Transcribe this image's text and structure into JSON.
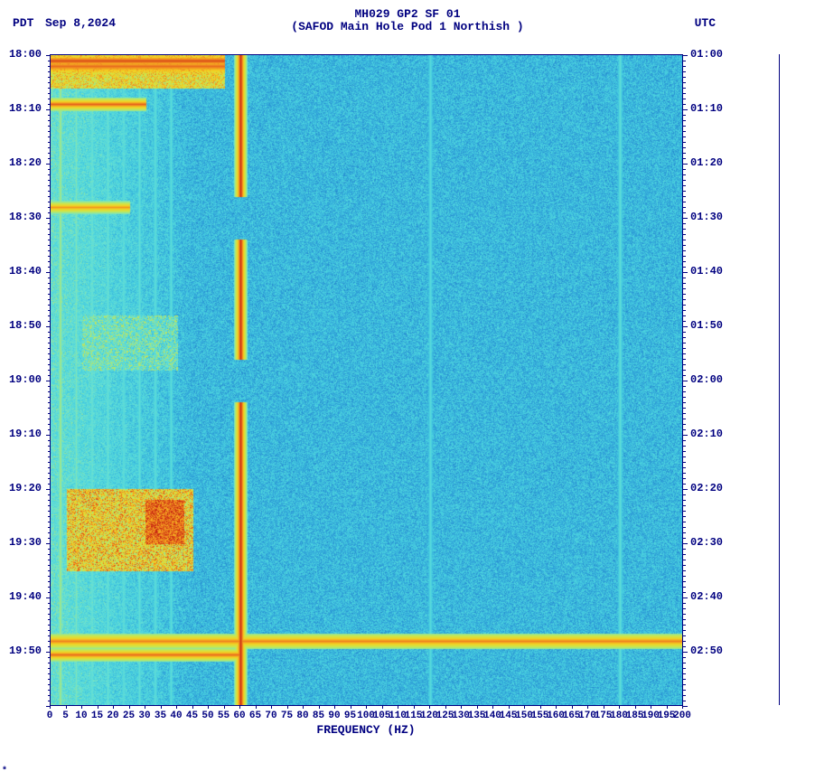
{
  "header": {
    "tz_left": "PDT",
    "date": "Sep 8,2024",
    "title_line1": "MH029 GP2 SF 01",
    "title_line2": "(SAFOD Main Hole Pod 1 Northish )",
    "tz_right": "UTC"
  },
  "chart": {
    "type": "heatmap",
    "xlabel": "FREQUENCY (HZ)",
    "xlim": [
      0,
      200
    ],
    "xtick_step": 5,
    "xtick_labels": [
      "0",
      "5",
      "10",
      "15",
      "20",
      "25",
      "30",
      "35",
      "40",
      "45",
      "50",
      "55",
      "60",
      "65",
      "70",
      "75",
      "80",
      "85",
      "90",
      "95",
      "100",
      "105",
      "110",
      "115",
      "120",
      "125",
      "130",
      "135",
      "140",
      "145",
      "150",
      "155",
      "160",
      "165",
      "170",
      "175",
      "180",
      "185",
      "190",
      "195",
      "200"
    ],
    "y_left_labels": [
      "18:00",
      "18:10",
      "18:20",
      "18:30",
      "18:40",
      "18:50",
      "19:00",
      "19:10",
      "19:20",
      "19:30",
      "19:40",
      "19:50"
    ],
    "y_right_labels": [
      "01:00",
      "01:10",
      "01:20",
      "01:30",
      "01:40",
      "01:50",
      "02:00",
      "02:10",
      "02:20",
      "02:30",
      "02:40",
      "02:50"
    ],
    "y_num_major": 12,
    "y_total_minutes": 120,
    "colormap": {
      "stops": [
        [
          0.0,
          "#0a3a8c"
        ],
        [
          0.15,
          "#1a5fb4"
        ],
        [
          0.3,
          "#2d9cd8"
        ],
        [
          0.45,
          "#48d1e0"
        ],
        [
          0.6,
          "#6de3d0"
        ],
        [
          0.72,
          "#c8e850"
        ],
        [
          0.82,
          "#f5d020"
        ],
        [
          0.9,
          "#f08020"
        ],
        [
          1.0,
          "#c01810"
        ]
      ]
    },
    "background_base_range": [
      0.28,
      0.48
    ],
    "low_freq_boost": {
      "freq_cutoff": 45,
      "boost_max": 0.18
    },
    "vertical_lines": [
      {
        "freq": 60,
        "width": 2.2,
        "intensity": 0.98
      },
      {
        "freq": 120,
        "width": 0.9,
        "intensity": 0.52
      },
      {
        "freq": 180,
        "width": 0.9,
        "intensity": 0.55
      },
      {
        "freq": 3,
        "width": 1.0,
        "intensity": 0.7
      },
      {
        "freq": 8,
        "width": 0.8,
        "intensity": 0.62
      },
      {
        "freq": 13,
        "width": 0.8,
        "intensity": 0.6
      },
      {
        "freq": 18,
        "width": 0.8,
        "intensity": 0.58
      },
      {
        "freq": 23,
        "width": 0.8,
        "intensity": 0.56
      },
      {
        "freq": 28,
        "width": 0.8,
        "intensity": 0.56
      },
      {
        "freq": 33,
        "width": 0.8,
        "intensity": 0.56
      },
      {
        "freq": 38,
        "width": 0.8,
        "intensity": 0.54
      }
    ],
    "horizontal_events": [
      {
        "time_min": 1.0,
        "freq_start": 0,
        "freq_end": 55,
        "thickness": 1.5,
        "intensity": 0.95
      },
      {
        "time_min": 2.0,
        "freq_start": 0,
        "freq_end": 55,
        "thickness": 2.0,
        "intensity": 0.92
      },
      {
        "time_min": 9.0,
        "freq_start": 0,
        "freq_end": 30,
        "thickness": 1.2,
        "intensity": 0.93
      },
      {
        "time_min": 28.0,
        "freq_start": 0,
        "freq_end": 25,
        "thickness": 1.2,
        "intensity": 0.88
      },
      {
        "time_min": 108.0,
        "freq_start": 0,
        "freq_end": 200,
        "thickness": 1.5,
        "intensity": 0.9
      },
      {
        "time_min": 110.5,
        "freq_start": 0,
        "freq_end": 60,
        "thickness": 1.2,
        "intensity": 0.92
      }
    ],
    "hot_blocks": [
      {
        "time_start": 80,
        "time_end": 95,
        "freq_start": 5,
        "freq_end": 45,
        "intensity": 0.8,
        "noise": 0.15
      },
      {
        "time_start": 82,
        "time_end": 90,
        "freq_start": 30,
        "freq_end": 42,
        "intensity": 0.92,
        "noise": 0.08
      },
      {
        "time_start": 48,
        "time_end": 58,
        "freq_start": 10,
        "freq_end": 40,
        "intensity": 0.55,
        "noise": 0.2
      },
      {
        "time_start": 0,
        "time_end": 6,
        "freq_start": 0,
        "freq_end": 55,
        "intensity": 0.78,
        "noise": 0.12
      }
    ],
    "sixty_hz_gaps": [
      {
        "time_min": 30,
        "width_min": 4
      },
      {
        "time_min": 60,
        "width_min": 4
      }
    ]
  },
  "footer": {
    "mark": "*"
  }
}
